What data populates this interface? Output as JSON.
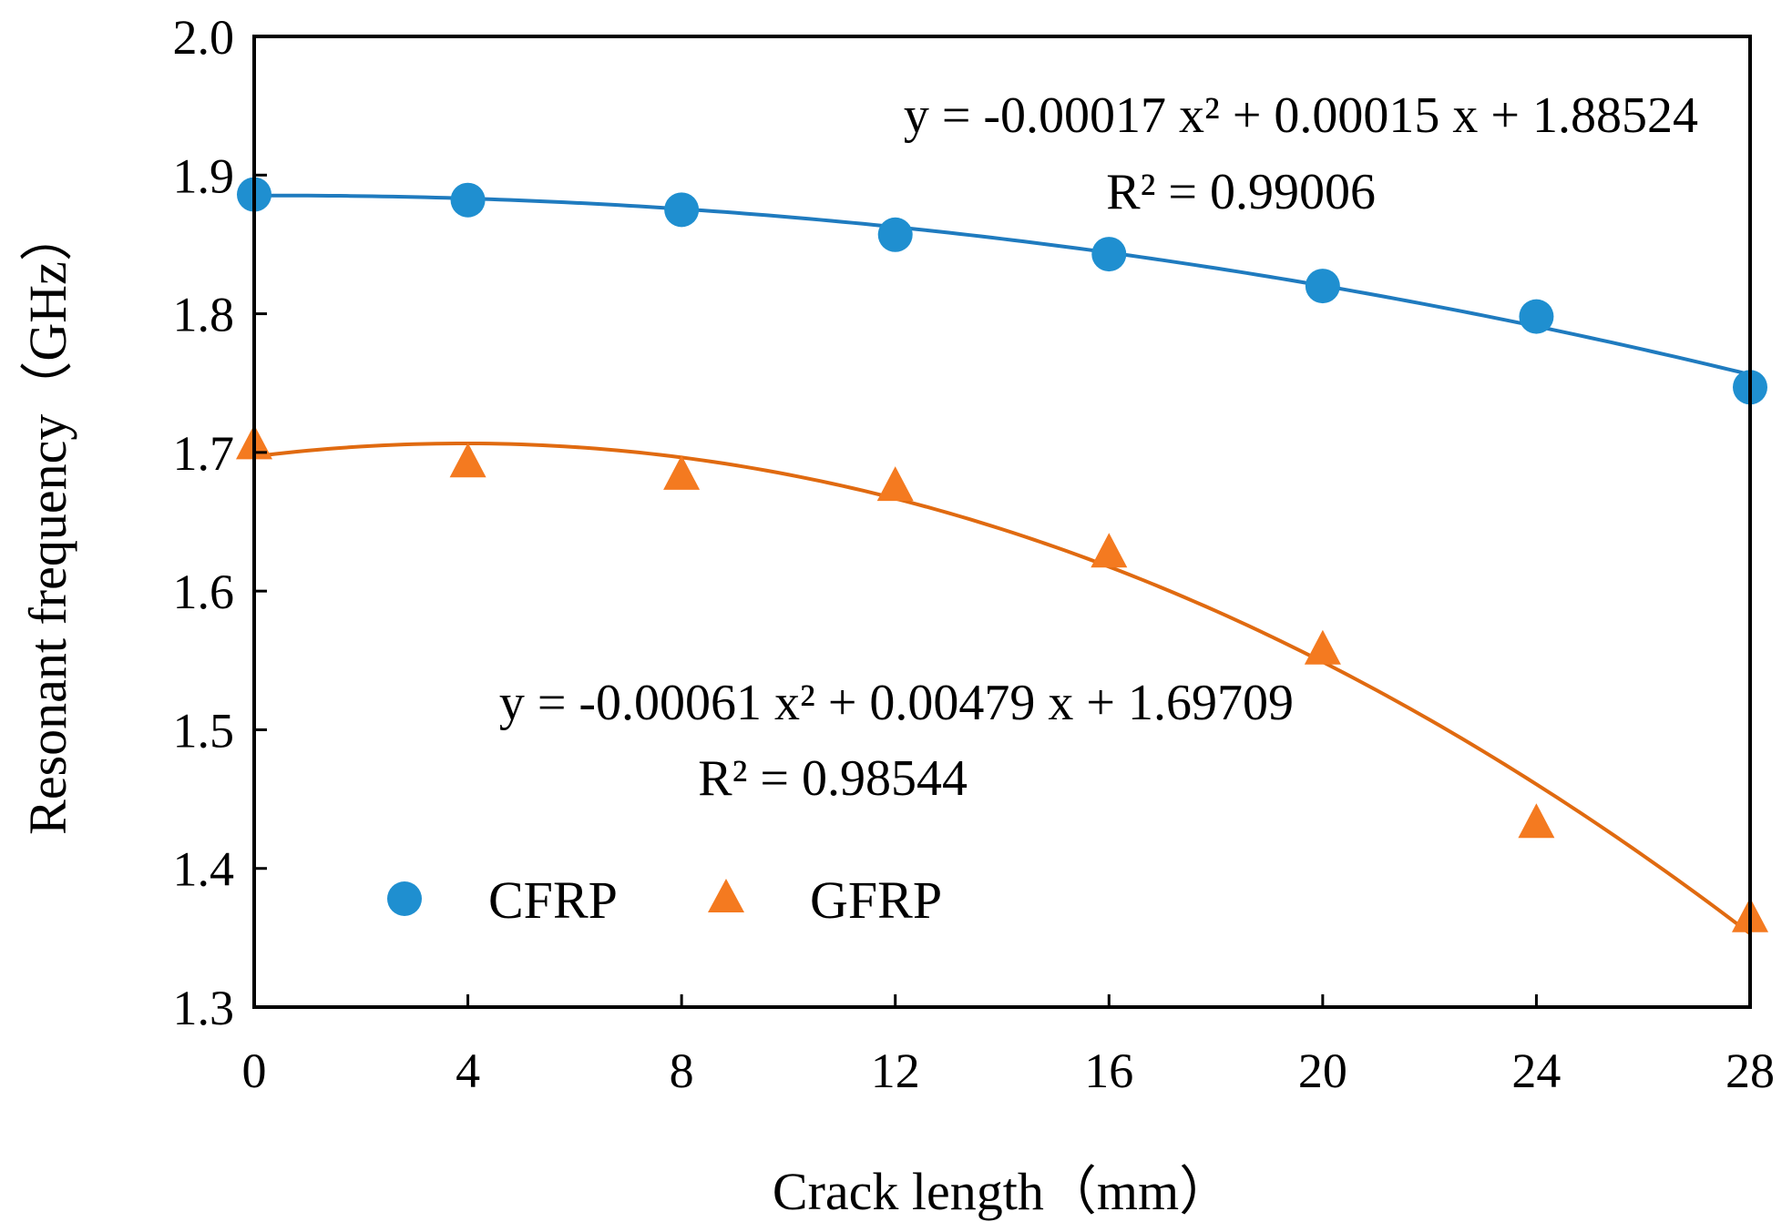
{
  "chart_data": {
    "type": "scatter",
    "title": "",
    "xlabel": "Crack length（mm）",
    "ylabel": "Resonant frequency（GHz）",
    "xlim": [
      0,
      28
    ],
    "ylim": [
      1.3,
      2.0
    ],
    "xticks": [
      0,
      4,
      8,
      12,
      16,
      20,
      24,
      28
    ],
    "yticks": [
      1.3,
      1.4,
      1.5,
      1.6,
      1.7,
      1.8,
      1.9,
      2.0
    ],
    "xtick_labels": [
      "0",
      "4",
      "8",
      "12",
      "16",
      "20",
      "24",
      "28"
    ],
    "ytick_labels": [
      "1.3",
      "1.4",
      "1.5",
      "1.6",
      "1.7",
      "1.8",
      "1.9",
      "2.0"
    ],
    "grid": false,
    "legend_position": "lower-left",
    "series": [
      {
        "name": "CFRP",
        "marker": "circle",
        "color": "#1f8fd0",
        "line_color": "#1f7bbf",
        "x": [
          0,
          4,
          8,
          12,
          16,
          20,
          24,
          28
        ],
        "values": [
          1.886,
          1.882,
          1.875,
          1.857,
          1.843,
          1.82,
          1.798,
          1.747
        ],
        "fit": {
          "a": -0.00017,
          "b": 0.00015,
          "c": 1.88524
        },
        "equation_line1": "y = -0.00017 x²  + 0.00015 x + 1.88524",
        "equation_line2": "R²  = 0.99006"
      },
      {
        "name": "GFRP",
        "marker": "triangle",
        "color": "#f47a20",
        "line_color": "#e06a10",
        "x": [
          0,
          4,
          8,
          12,
          16,
          20,
          24,
          28
        ],
        "values": [
          1.705,
          1.692,
          1.683,
          1.675,
          1.627,
          1.557,
          1.432,
          1.364
        ],
        "fit": {
          "a": -0.00061,
          "b": 0.00479,
          "c": 1.69709
        },
        "equation_line1": "y = -0.00061 x²  + 0.00479 x + 1.69709",
        "equation_line2": "R²  = 0.98544"
      }
    ]
  }
}
